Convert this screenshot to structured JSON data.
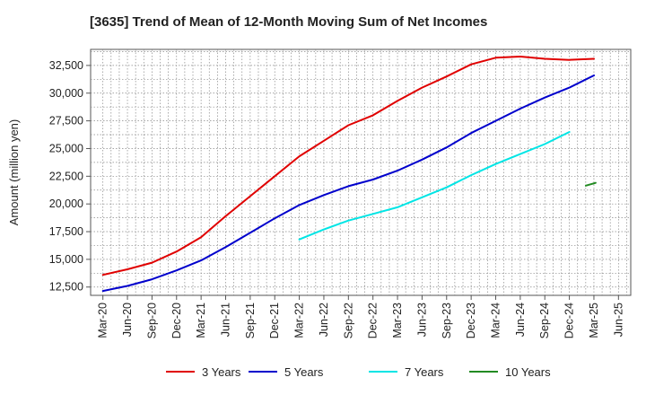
{
  "chart_data": {
    "type": "line",
    "title": "[3635]  Trend of Mean of 12-Month Moving Sum of Net Incomes",
    "ylabel": "Amount (million yen)",
    "xlabel": "",
    "ylim": [
      11750,
      33950
    ],
    "yticks": [
      12500,
      15000,
      17500,
      20000,
      22500,
      25000,
      27500,
      30000,
      32500
    ],
    "ytick_labels": [
      "12,500",
      "15,000",
      "17,500",
      "20,000",
      "22,500",
      "25,000",
      "27,500",
      "30,000",
      "32,500"
    ],
    "xtick_labels": [
      "Mar-20",
      "Jun-20",
      "Sep-20",
      "Dec-20",
      "Mar-21",
      "Jun-21",
      "Sep-21",
      "Dec-21",
      "Mar-22",
      "Jun-22",
      "Sep-22",
      "Dec-22",
      "Mar-23",
      "Jun-23",
      "Sep-23",
      "Dec-23",
      "Mar-24",
      "Jun-24",
      "Sep-24",
      "Dec-24",
      "Mar-25",
      "Jun-25"
    ],
    "grid": true,
    "legend_position": "bottom",
    "series": [
      {
        "name": "3 Years",
        "color": "#e00000",
        "start_index": 0,
        "values": [
          13600,
          14100,
          14700,
          15700,
          17000,
          18900,
          20700,
          22500,
          24300,
          25700,
          27100,
          28000,
          29300,
          30500,
          31500,
          32600,
          33200,
          33300,
          33100,
          33000,
          33100
        ]
      },
      {
        "name": "5 Years",
        "color": "#0000cc",
        "start_index": 0,
        "values": [
          12150,
          12600,
          13200,
          14000,
          14900,
          16100,
          17400,
          18700,
          19900,
          20800,
          21600,
          22200,
          23000,
          24000,
          25100,
          26400,
          27500,
          28600,
          29600,
          30500,
          31600
        ]
      },
      {
        "name": "7 Years",
        "color": "#00e5e5",
        "start_index": 8,
        "values": [
          16800,
          17700,
          18500,
          19100,
          19700,
          20600,
          21500,
          22600,
          23600,
          24500,
          25400,
          26500
        ]
      },
      {
        "name": "10 Years",
        "color": "#228b22",
        "start_index": 19.67,
        "values": [
          21650,
          21900
        ]
      }
    ]
  }
}
